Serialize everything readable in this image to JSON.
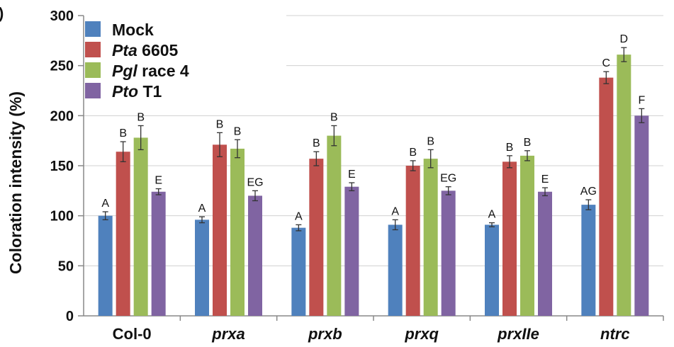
{
  "panel_mark": ")",
  "chart_data": {
    "type": "bar",
    "ylabel": "Coloration intensity (%)",
    "ylim": [
      0,
      300
    ],
    "yticks": [
      "0",
      "50",
      "100",
      "150",
      "200",
      "250",
      "300"
    ],
    "grid": true,
    "legend_position": "top-left",
    "categories": [
      {
        "label": "Col-0",
        "italic": false
      },
      {
        "label": "prxa",
        "italic": true
      },
      {
        "label": "prxb",
        "italic": true
      },
      {
        "label": "prxq",
        "italic": true
      },
      {
        "label": "prxIIe",
        "italic": true
      },
      {
        "label": "ntrc",
        "italic": true
      }
    ],
    "series": [
      {
        "name_italic": "",
        "name_rest": "Mock",
        "color": "#4f81bd",
        "values": [
          100,
          96,
          88,
          91,
          91,
          111
        ],
        "errors": [
          4,
          3,
          3,
          5,
          2,
          5
        ],
        "labels": [
          "A",
          "A",
          "A",
          "A",
          "A",
          "AG"
        ]
      },
      {
        "name_italic": "Pta",
        "name_rest": " 6605",
        "color": "#c0504d",
        "values": [
          164,
          171,
          157,
          150,
          154,
          238
        ],
        "errors": [
          10,
          12,
          7,
          5,
          6,
          6
        ],
        "labels": [
          "B",
          "B",
          "B",
          "B",
          "B",
          "C"
        ]
      },
      {
        "name_italic": "Pgl",
        "name_rest": " race 4",
        "color": "#9bbb59",
        "values": [
          178,
          167,
          180,
          157,
          160,
          261
        ],
        "errors": [
          12,
          9,
          10,
          9,
          5,
          7
        ],
        "labels": [
          "B",
          "B",
          "B",
          "B",
          "B",
          "D"
        ]
      },
      {
        "name_italic": "Pto",
        "name_rest": " T1",
        "color": "#8064a2",
        "values": [
          124,
          120,
          129,
          125,
          124,
          200
        ],
        "errors": [
          3,
          5,
          4,
          4,
          4,
          7
        ],
        "labels": [
          "E",
          "EG",
          "E",
          "EG",
          "E",
          "F"
        ]
      }
    ]
  }
}
